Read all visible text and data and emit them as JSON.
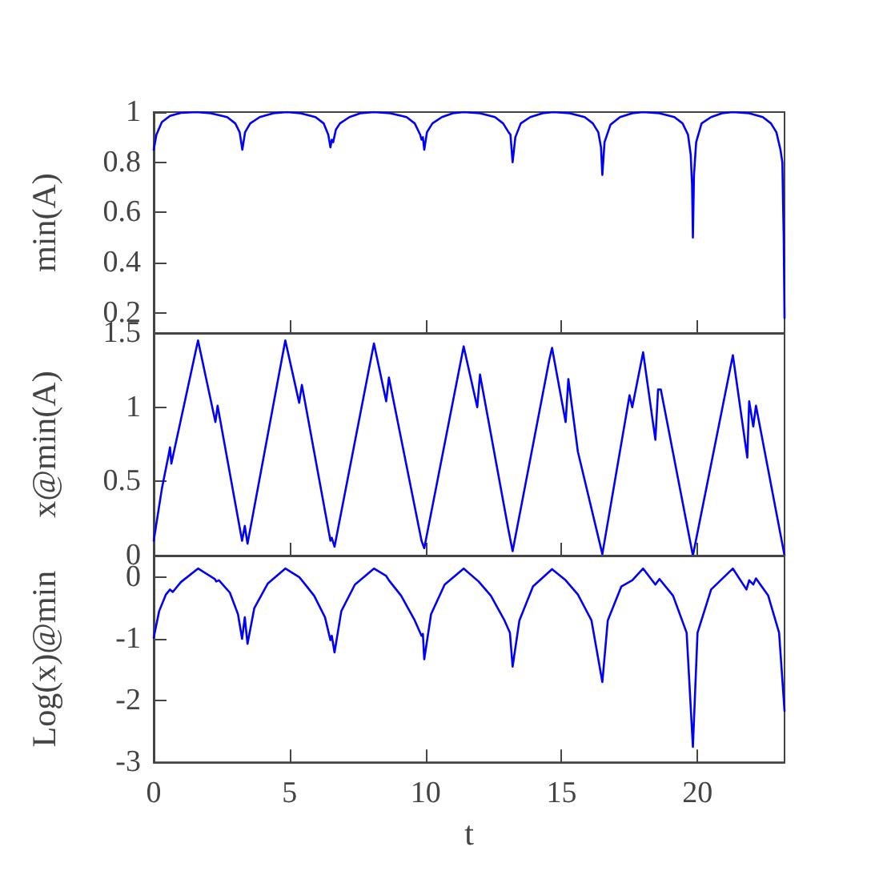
{
  "chart_data": [
    {
      "type": "line",
      "ylabel": "min(A)",
      "xlim": [
        0,
        23.2
      ],
      "ylim": [
        0.12,
        1
      ],
      "xticks": [
        0,
        5,
        10,
        15,
        20
      ],
      "yticks": [
        0.2,
        0.4,
        0.6,
        0.8,
        1
      ],
      "tick_labels": "y",
      "grid": false,
      "marker": "none",
      "line_style": "solid",
      "series": [
        {
          "color": "#0000ff",
          "x": [
            0,
            0.1,
            0.3,
            0.6,
            1.0,
            1.6,
            2.1,
            2.7,
            3.0,
            3.16,
            3.26,
            3.36,
            3.55,
            3.9,
            4.4,
            4.9,
            5.4,
            5.95,
            6.25,
            6.42,
            6.5,
            6.55,
            6.6,
            6.7,
            6.85,
            7.2,
            7.6,
            8.1,
            8.7,
            9.3,
            9.6,
            9.8,
            9.85,
            9.9,
            9.95,
            10.05,
            10.25,
            10.6,
            11.0,
            11.4,
            12.0,
            12.55,
            12.85,
            13.05,
            13.12,
            13.2,
            13.3,
            13.5,
            13.85,
            14.3,
            14.7,
            15.3,
            15.85,
            16.15,
            16.35,
            16.45,
            16.5,
            16.58,
            16.8,
            17.15,
            17.6,
            18.0,
            18.6,
            19.15,
            19.45,
            19.65,
            19.75,
            19.8,
            19.83,
            19.87,
            19.95,
            20.15,
            20.5,
            20.9,
            21.3,
            21.9,
            22.4,
            22.7,
            22.9,
            23.05,
            23.12,
            23.17,
            23.2
          ],
          "values": [
            0.85,
            0.91,
            0.96,
            0.985,
            0.997,
            1.0,
            0.995,
            0.98,
            0.955,
            0.92,
            0.85,
            0.92,
            0.955,
            0.98,
            0.995,
            1.0,
            0.995,
            0.98,
            0.955,
            0.91,
            0.86,
            0.89,
            0.88,
            0.93,
            0.955,
            0.98,
            0.995,
            1.0,
            0.995,
            0.98,
            0.955,
            0.91,
            0.89,
            0.9,
            0.85,
            0.92,
            0.955,
            0.98,
            0.995,
            1.0,
            0.995,
            0.98,
            0.955,
            0.92,
            0.91,
            0.8,
            0.9,
            0.955,
            0.98,
            0.995,
            1.0,
            0.995,
            0.98,
            0.955,
            0.92,
            0.86,
            0.75,
            0.88,
            0.95,
            0.98,
            0.995,
            1.0,
            0.995,
            0.98,
            0.955,
            0.91,
            0.83,
            0.71,
            0.5,
            0.75,
            0.88,
            0.955,
            0.98,
            0.995,
            1.0,
            0.995,
            0.98,
            0.955,
            0.92,
            0.85,
            0.8,
            0.5,
            0.18
          ]
        }
      ]
    },
    {
      "type": "line",
      "ylabel": "x@min(A)",
      "xlim": [
        0,
        23.2
      ],
      "ylim": [
        0,
        1.5
      ],
      "xticks": [
        0,
        5,
        10,
        15,
        20
      ],
      "yticks": [
        0,
        0.5,
        1,
        1.5
      ],
      "tick_labels": "y",
      "grid": false,
      "marker": "none",
      "line_style": "solid",
      "series": [
        {
          "color": "#0000ff",
          "x": [
            0,
            0.3,
            0.55,
            0.6,
            0.65,
            1.63,
            2.27,
            2.35,
            3.25,
            3.35,
            3.45,
            4.84,
            5.35,
            5.45,
            6.5,
            6.55,
            6.65,
            8.1,
            8.55,
            8.65,
            9.85,
            9.95,
            11.4,
            11.9,
            12.0,
            13.05,
            13.2,
            14.55,
            14.65,
            15.15,
            15.25,
            15.6,
            16.5,
            17.5,
            17.6,
            18.0,
            18.45,
            18.55,
            18.65,
            19.83,
            21.3,
            21.83,
            21.9,
            22.05,
            22.15,
            23.2
          ],
          "values": [
            0.1,
            0.45,
            0.68,
            0.73,
            0.62,
            1.45,
            0.9,
            1.01,
            0.1,
            0.2,
            0.08,
            1.45,
            1.03,
            1.15,
            0.1,
            0.12,
            0.06,
            1.43,
            1.04,
            1.2,
            0.1,
            0.05,
            1.41,
            1.0,
            1.22,
            0.17,
            0.03,
            1.32,
            1.4,
            0.9,
            1.19,
            0.7,
            0.01,
            1.08,
            1.0,
            1.37,
            0.78,
            1.12,
            1.12,
            0.0,
            1.35,
            0.66,
            1.04,
            0.87,
            1.01,
            0.0
          ]
        }
      ]
    },
    {
      "type": "line",
      "xlabel": "t",
      "ylabel": "Log(x)@min",
      "xlim": [
        0,
        23.2
      ],
      "ylim": [
        -3,
        0.35
      ],
      "xticks": [
        0,
        5,
        10,
        15,
        20
      ],
      "yticks": [
        -3,
        -2,
        -1,
        0
      ],
      "grid": false,
      "marker": "none",
      "line_style": "solid",
      "series": [
        {
          "color": "#0000ff",
          "x": [
            0,
            0.2,
            0.45,
            0.6,
            0.7,
            1.0,
            1.63,
            2.25,
            2.3,
            2.4,
            2.8,
            3.1,
            3.25,
            3.35,
            3.45,
            3.7,
            4.2,
            4.84,
            5.35,
            5.45,
            5.9,
            6.3,
            6.5,
            6.55,
            6.65,
            6.9,
            7.4,
            8.1,
            8.55,
            8.65,
            9.1,
            9.6,
            9.85,
            9.9,
            9.95,
            10.2,
            10.7,
            11.4,
            11.95,
            12.4,
            12.9,
            13.05,
            13.1,
            13.2,
            13.45,
            13.95,
            14.65,
            15.15,
            15.6,
            16.1,
            16.5,
            16.7,
            17.2,
            17.6,
            18.0,
            18.45,
            18.6,
            19.1,
            19.6,
            19.83,
            20.0,
            20.5,
            21.3,
            21.8,
            21.9,
            22.05,
            22.15,
            22.6,
            23.0,
            23.2
          ],
          "values": [
            -0.98,
            -0.55,
            -0.28,
            -0.2,
            -0.24,
            -0.08,
            0.14,
            -0.03,
            -0.07,
            -0.05,
            -0.25,
            -0.6,
            -1.0,
            -0.65,
            -1.08,
            -0.5,
            -0.1,
            0.14,
            0.0,
            -0.05,
            -0.3,
            -0.65,
            -1.02,
            -0.95,
            -1.22,
            -0.55,
            -0.12,
            0.14,
            0.02,
            -0.05,
            -0.3,
            -0.7,
            -0.95,
            -0.92,
            -1.33,
            -0.6,
            -0.12,
            0.14,
            -0.07,
            -0.3,
            -0.7,
            -0.85,
            -0.9,
            -1.45,
            -0.7,
            -0.15,
            0.13,
            -0.05,
            -0.28,
            -0.7,
            -1.7,
            -0.7,
            -0.15,
            -0.05,
            0.14,
            -0.12,
            -0.03,
            -0.3,
            -0.9,
            -2.75,
            -0.9,
            -0.2,
            0.14,
            -0.2,
            -0.05,
            -0.12,
            -0.02,
            -0.3,
            -0.9,
            -2.17
          ]
        }
      ]
    }
  ]
}
